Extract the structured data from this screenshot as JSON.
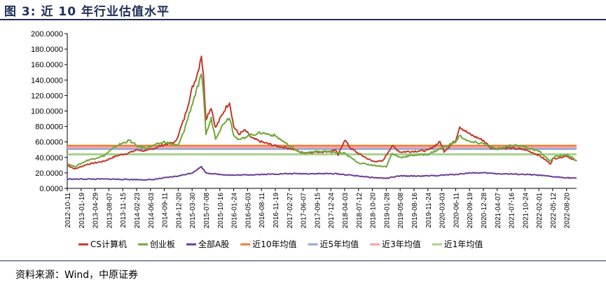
{
  "figure": {
    "title": "图 3:  近 10 年行业估值水平",
    "source": "资料来源：Wind，中原证券"
  },
  "chart_data": {
    "type": "line",
    "ylim": [
      0,
      200
    ],
    "y_ticks": [
      "0.0000",
      "20.0000",
      "40.0000",
      "60.0000",
      "80.0000",
      "100.0000",
      "120.0000",
      "140.0000",
      "160.0000",
      "180.0000",
      "200.0000"
    ],
    "x_ticks": [
      "2012-10-11",
      "2013-01-19",
      "2013-04-29",
      "2013-08-07",
      "2013-11-15",
      "2014-02-23",
      "2014-06-03",
      "2014-09-11",
      "2014-12-20",
      "2015-03-30",
      "2015-07-08",
      "2015-10-16",
      "2016-01-24",
      "2016-05-03",
      "2016-08-11",
      "2016-11-19",
      "2017-02-27",
      "2017-06-07",
      "2017-09-15",
      "2017-12-24",
      "2018-04-03",
      "2018-07-12",
      "2018-10-20",
      "2019-01-28",
      "2019-05-08",
      "2019-08-16",
      "2019-11-24",
      "2020-03-03",
      "2020-06-11",
      "2020-09-19",
      "2020-12-28",
      "2021-04-07",
      "2021-07-16",
      "2021-10-24",
      "2022-02-01",
      "2022-05-12",
      "2022-08-20"
    ],
    "x_start": "2012-10-11",
    "x_end": "2022-10-31",
    "series": [
      {
        "name": "CS计算机",
        "color": "#c0392b",
        "points": [
          [
            "2012-10-11",
            30
          ],
          [
            "2012-12-05",
            25
          ],
          [
            "2013-03-01",
            31
          ],
          [
            "2013-07-01",
            35
          ],
          [
            "2013-10-01",
            42
          ],
          [
            "2014-01-01",
            46
          ],
          [
            "2014-03-01",
            50
          ],
          [
            "2014-05-01",
            48
          ],
          [
            "2014-09-01",
            56
          ],
          [
            "2014-12-01",
            60
          ],
          [
            "2015-02-01",
            90
          ],
          [
            "2015-04-01",
            130
          ],
          [
            "2015-05-10",
            150
          ],
          [
            "2015-06-05",
            173
          ],
          [
            "2015-06-20",
            145
          ],
          [
            "2015-07-08",
            90
          ],
          [
            "2015-08-15",
            105
          ],
          [
            "2015-09-15",
            78
          ],
          [
            "2015-11-15",
            100
          ],
          [
            "2015-12-25",
            112
          ],
          [
            "2016-01-24",
            80
          ],
          [
            "2016-03-01",
            70
          ],
          [
            "2016-04-15",
            75
          ],
          [
            "2016-06-01",
            65
          ],
          [
            "2016-08-11",
            60
          ],
          [
            "2016-11-19",
            55
          ],
          [
            "2017-02-27",
            52
          ],
          [
            "2017-06-07",
            46
          ],
          [
            "2017-09-15",
            47
          ],
          [
            "2017-12-24",
            48
          ],
          [
            "2018-01-25",
            50
          ],
          [
            "2018-02-15",
            43
          ],
          [
            "2018-04-03",
            63
          ],
          [
            "2018-05-15",
            52
          ],
          [
            "2018-07-12",
            45
          ],
          [
            "2018-10-20",
            35
          ],
          [
            "2019-01-01",
            35
          ],
          [
            "2019-03-10",
            55
          ],
          [
            "2019-05-08",
            47
          ],
          [
            "2019-08-16",
            48
          ],
          [
            "2019-11-24",
            49
          ],
          [
            "2020-02-20",
            60
          ],
          [
            "2020-03-20",
            48
          ],
          [
            "2020-06-11",
            62
          ],
          [
            "2020-07-10",
            80
          ],
          [
            "2020-09-19",
            70
          ],
          [
            "2020-12-28",
            62
          ],
          [
            "2021-02-20",
            52
          ],
          [
            "2021-04-07",
            52
          ],
          [
            "2021-07-16",
            52
          ],
          [
            "2021-10-24",
            50
          ],
          [
            "2022-02-01",
            43
          ],
          [
            "2022-04-26",
            32
          ],
          [
            "2022-05-12",
            38
          ],
          [
            "2022-08-20",
            42
          ],
          [
            "2022-10-31",
            35
          ]
        ]
      },
      {
        "name": "创业板",
        "color": "#70a83b",
        "points": [
          [
            "2012-10-11",
            32
          ],
          [
            "2012-12-05",
            28
          ],
          [
            "2013-03-01",
            36
          ],
          [
            "2013-07-01",
            42
          ],
          [
            "2013-10-01",
            55
          ],
          [
            "2014-01-01",
            62
          ],
          [
            "2014-02-23",
            55
          ],
          [
            "2014-05-01",
            52
          ],
          [
            "2014-09-11",
            60
          ],
          [
            "2014-12-20",
            55
          ],
          [
            "2015-02-01",
            75
          ],
          [
            "2015-04-01",
            110
          ],
          [
            "2015-06-05",
            145
          ],
          [
            "2015-06-20",
            125
          ],
          [
            "2015-07-08",
            70
          ],
          [
            "2015-08-15",
            90
          ],
          [
            "2015-09-15",
            65
          ],
          [
            "2015-11-15",
            85
          ],
          [
            "2015-12-25",
            92
          ],
          [
            "2016-01-24",
            70
          ],
          [
            "2016-03-01",
            62
          ],
          [
            "2016-05-03",
            68
          ],
          [
            "2016-08-11",
            72
          ],
          [
            "2016-11-19",
            68
          ],
          [
            "2017-02-27",
            55
          ],
          [
            "2017-06-07",
            45
          ],
          [
            "2017-09-15",
            48
          ],
          [
            "2017-12-24",
            47
          ],
          [
            "2018-04-03",
            45
          ],
          [
            "2018-07-12",
            33
          ],
          [
            "2018-10-20",
            30
          ],
          [
            "2019-01-28",
            28
          ],
          [
            "2019-03-10",
            45
          ],
          [
            "2019-05-08",
            40
          ],
          [
            "2019-08-16",
            43
          ],
          [
            "2019-11-24",
            44
          ],
          [
            "2020-03-03",
            52
          ],
          [
            "2020-06-11",
            60
          ],
          [
            "2020-07-10",
            68
          ],
          [
            "2020-09-19",
            60
          ],
          [
            "2020-12-28",
            58
          ],
          [
            "2021-04-07",
            50
          ],
          [
            "2021-07-16",
            56
          ],
          [
            "2021-10-24",
            54
          ],
          [
            "2022-02-01",
            48
          ],
          [
            "2022-04-26",
            35
          ],
          [
            "2022-05-12",
            40
          ],
          [
            "2022-08-20",
            44
          ],
          [
            "2022-10-31",
            36
          ]
        ]
      },
      {
        "name": "全部A股",
        "color": "#6a3e98",
        "points": [
          [
            "2012-10-11",
            12
          ],
          [
            "2013-01-19",
            12
          ],
          [
            "2013-08-07",
            12
          ],
          [
            "2014-06-03",
            11
          ],
          [
            "2014-12-20",
            16
          ],
          [
            "2015-03-30",
            20
          ],
          [
            "2015-06-05",
            28
          ],
          [
            "2015-07-08",
            20
          ],
          [
            "2015-10-16",
            18
          ],
          [
            "2016-01-24",
            17
          ],
          [
            "2016-08-11",
            18
          ],
          [
            "2017-02-27",
            19
          ],
          [
            "2017-09-15",
            19
          ],
          [
            "2018-01-25",
            19
          ],
          [
            "2018-07-12",
            16
          ],
          [
            "2018-10-20",
            14
          ],
          [
            "2019-01-28",
            13
          ],
          [
            "2019-05-08",
            16
          ],
          [
            "2019-11-24",
            16
          ],
          [
            "2020-03-03",
            17
          ],
          [
            "2020-06-11",
            18
          ],
          [
            "2020-09-19",
            20
          ],
          [
            "2020-12-28",
            20
          ],
          [
            "2021-04-07",
            19
          ],
          [
            "2021-10-24",
            18
          ],
          [
            "2022-02-01",
            17
          ],
          [
            "2022-05-12",
            15
          ],
          [
            "2022-10-31",
            13
          ]
        ]
      }
    ],
    "reference_lines": [
      {
        "name": "近10年均值",
        "color": "#ed7d31",
        "value": 55
      },
      {
        "name": "近5年均值",
        "color": "#8faadc",
        "value": 51
      },
      {
        "name": "近3年均值",
        "color": "#f4a3a3",
        "value": 53
      },
      {
        "name": "近1年均值",
        "color": "#a9d18e",
        "value": 44
      }
    ],
    "legend_position": "bottom"
  }
}
